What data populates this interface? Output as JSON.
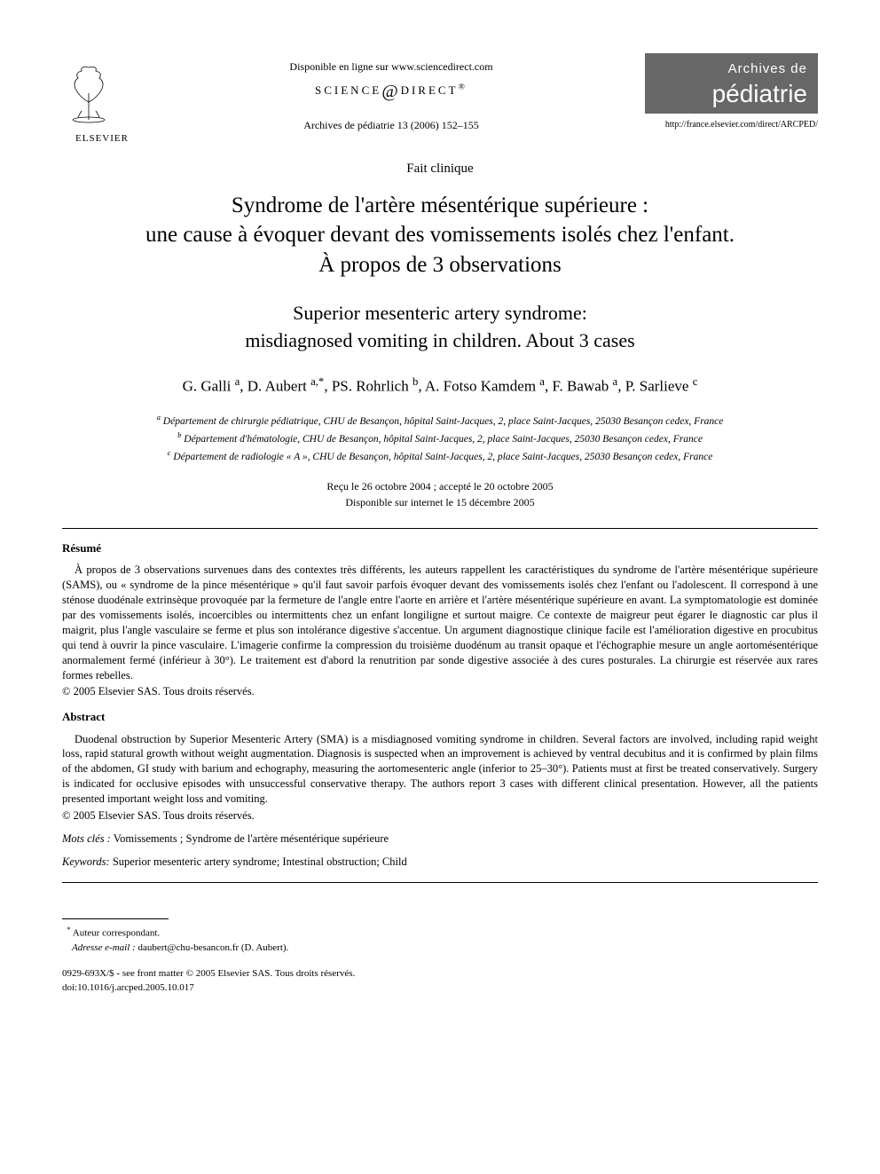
{
  "header": {
    "available_text": "Disponible en ligne sur www.sciencedirect.com",
    "science_direct": "SCIENCE",
    "science_direct2": "DIRECT",
    "journal_ref": "Archives de pédiatrie 13 (2006) 152–155",
    "elsevier": "ELSEVIER",
    "journal_box_top": "Archives de",
    "journal_box_main": "pédiatrie",
    "journal_url": "http://france.elsevier.com/direct/ARCPED/"
  },
  "article": {
    "type": "Fait clinique",
    "title_fr_l1": "Syndrome de l'artère mésentérique supérieure :",
    "title_fr_l2": "une cause à évoquer devant des vomissements isolés chez l'enfant.",
    "title_fr_l3": "À propos de 3 observations",
    "title_en_l1": "Superior mesenteric artery syndrome:",
    "title_en_l2": "misdiagnosed vomiting in children. About 3 cases",
    "authors_html": "G. Galli <sup>a</sup>, D. Aubert <sup>a,*</sup>, PS. Rohrlich <sup>b</sup>, A. Fotso Kamdem <sup>a</sup>, F. Bawab <sup>a</sup>, P. Sarlieve <sup>c</sup>",
    "affil_a": "Département de chirurgie pédiatrique, CHU de Besançon, hôpital Saint-Jacques, 2, place Saint-Jacques, 25030 Besançon cedex, France",
    "affil_b": "Département d'hématologie, CHU de Besançon, hôpital Saint-Jacques, 2, place Saint-Jacques, 25030 Besançon cedex, France",
    "affil_c": "Département de radiologie « A », CHU de Besançon, hôpital Saint-Jacques, 2, place Saint-Jacques, 25030 Besançon cedex, France",
    "dates_l1": "Reçu le 26 octobre 2004 ; accepté le 20 octobre 2005",
    "dates_l2": "Disponible sur internet le 15 décembre 2005"
  },
  "resume": {
    "heading": "Résumé",
    "body": "À propos de 3 observations survenues dans des contextes très différents, les auteurs rappellent les caractéristiques du syndrome de l'artère mésentérique supérieure (SAMS), ou « syndrome de la pince mésentérique » qu'il faut savoir parfois évoquer devant des vomissements isolés chez l'enfant ou l'adolescent. Il correspond à une sténose duodénale extrinsèque provoquée par la fermeture de l'angle entre l'aorte en arrière et l'artère mésentérique supérieure en avant. La symptomatologie est dominée par des vomissements isolés, incoercibles ou intermittents chez un enfant longiligne et surtout maigre. Ce contexte de maigreur peut égarer le diagnostic car plus il maigrit, plus l'angle vasculaire se ferme et plus son intolérance digestive s'accentue. Un argument diagnostique clinique facile est l'amélioration digestive en procubitus qui tend à ouvrir la pince vasculaire. L'imagerie confirme la compression du troisième duodénum au transit opaque et l'échographie mesure un angle aortomésentérique anormalement fermé (inférieur à 30°). Le traitement est d'abord la renutrition par sonde digestive associée à des cures posturales. La chirurgie est réservée aux rares formes rebelles.",
    "copyright": "© 2005 Elsevier SAS. Tous droits réservés."
  },
  "abstract": {
    "heading": "Abstract",
    "body": "Duodenal obstruction by Superior Mesenteric Artery (SMA) is a misdiagnosed vomiting syndrome in children. Several factors are involved, including rapid weight loss, rapid statural growth without weight augmentation. Diagnosis is suspected when an improvement is achieved by ventral decubitus and it is confirmed by plain films of the abdomen, GI study with barium and echography, measuring the aortomesenteric angle (inferior to 25–30°). Patients must at first be treated conservatively. Surgery is indicated for occlusive episodes with unsuccessful conservative therapy. The authors report 3 cases with different clinical presentation. However, all the patients presented important weight loss and vomiting.",
    "copyright": "© 2005 Elsevier SAS. Tous droits réservés."
  },
  "keywords": {
    "mots_label": "Mots clés :",
    "mots_val": "Vomissements ; Syndrome de l'artère mésentérique supérieure",
    "kw_label": "Keywords:",
    "kw_val": "Superior mesenteric artery syndrome; Intestinal obstruction; Child"
  },
  "footnote": {
    "corresp": "Auteur correspondant.",
    "email_label": "Adresse e-mail :",
    "email_val": "daubert@chu-besancon.fr (D. Aubert)."
  },
  "footer": {
    "line1": "0929-693X/$ - see front matter © 2005 Elsevier SAS. Tous droits réservés.",
    "line2": "doi:10.1016/j.arcped.2005.10.017"
  }
}
